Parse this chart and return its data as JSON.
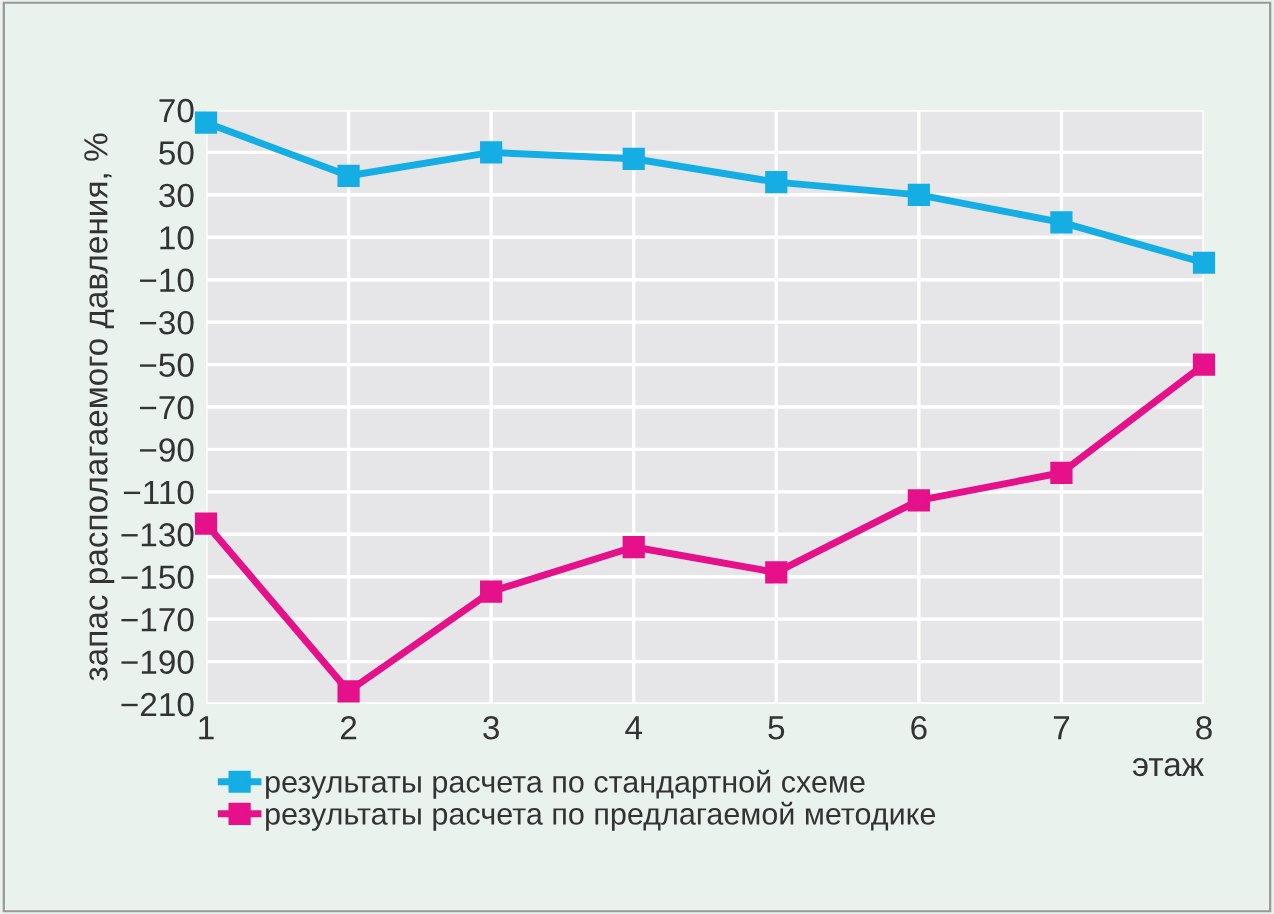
{
  "chart_data": {
    "type": "line",
    "xlabel": "этаж",
    "ylabel": "запас располагаемого давления, %",
    "x": [
      1,
      2,
      3,
      4,
      5,
      6,
      7,
      8
    ],
    "series": [
      {
        "name": "результаты расчета по стандартной схеме",
        "color": "#14aee5",
        "values": [
          64,
          39,
          50,
          47,
          36,
          30,
          17,
          -2
        ]
      },
      {
        "name": "результаты расчета по предлагаемой методике",
        "color": "#e5108a",
        "values": [
          -125,
          -204,
          -157,
          -136,
          -148,
          -114,
          -101,
          -50
        ]
      }
    ],
    "xlim": [
      1,
      8
    ],
    "xticks": [
      1,
      2,
      3,
      4,
      5,
      6,
      7,
      8
    ],
    "ylim": [
      -210,
      70
    ],
    "yticks": [
      {
        "value": 70,
        "label": "70"
      },
      {
        "value": 50,
        "label": "50"
      },
      {
        "value": 30,
        "label": "30"
      },
      {
        "value": 10,
        "label": "10"
      },
      {
        "value": -10,
        "label": "−10"
      },
      {
        "value": -30,
        "label": "−30"
      },
      {
        "value": -50,
        "label": "−50"
      },
      {
        "value": -70,
        "label": "−70"
      },
      {
        "value": -90,
        "label": "−90"
      },
      {
        "value": -110,
        "label": "−110"
      },
      {
        "value": -130,
        "label": "−130"
      },
      {
        "value": -150,
        "label": "−150"
      },
      {
        "value": -170,
        "label": "−170"
      },
      {
        "value": -190,
        "label": "−190"
      },
      {
        "value": -210,
        "label": "−210"
      }
    ],
    "grid": true,
    "legend": "bottom left",
    "marker": "square",
    "line_style": "solid"
  }
}
